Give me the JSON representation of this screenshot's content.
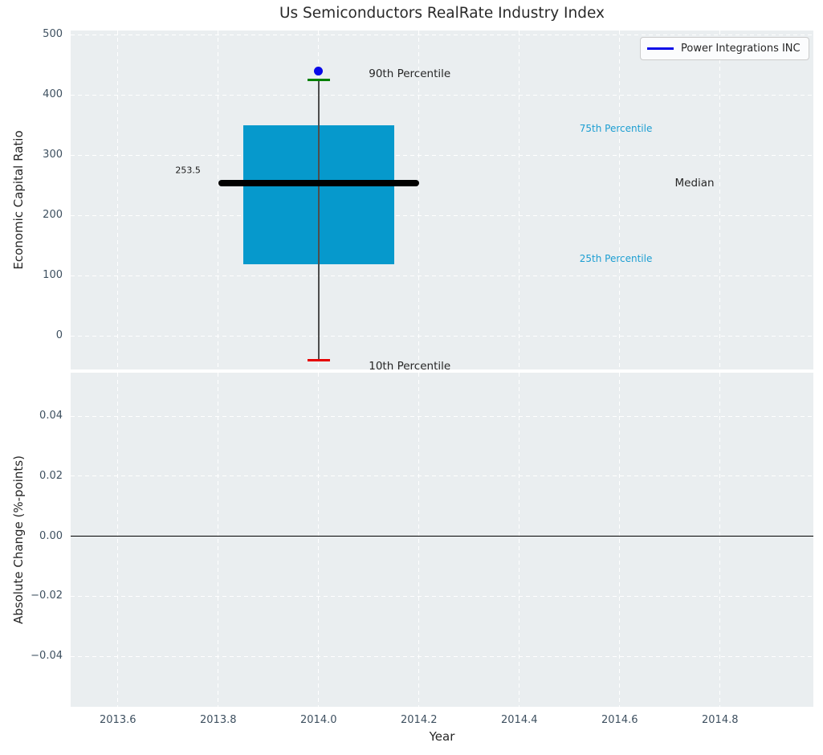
{
  "chart_data": {
    "type": "boxplot",
    "title": "Us Semiconductors RealRate Industry Index",
    "xlabel": "Year",
    "xlim": [
      2013.506,
      2014.986
    ],
    "xticks": [
      2013.6,
      2013.8,
      2014.0,
      2014.2,
      2014.4,
      2014.6,
      2014.8
    ],
    "xtick_labels": [
      "2013.6",
      "2013.8",
      "2014.0",
      "2014.2",
      "2014.4",
      "2014.6",
      "2014.8"
    ],
    "grid": "white dashed on light panel",
    "legend": {
      "label": "Power Integrations INC",
      "line_color": "#0808e8",
      "position": "upper right"
    },
    "panels": {
      "top": {
        "ylabel": "Economic Capital Ratio",
        "ylim": [
          -56,
          507
        ],
        "yticks": [
          0,
          100,
          200,
          300,
          400,
          500
        ],
        "ytick_labels": [
          "0",
          "100",
          "200",
          "300",
          "400",
          "500"
        ],
        "boxplot": {
          "x_center": 2014.0,
          "box_x_range": [
            2013.85,
            2014.15
          ],
          "median_x_range": [
            2013.8,
            2014.2
          ],
          "cap_x_range": [
            2013.978,
            2014.022
          ],
          "p90": 425,
          "p75": 349,
          "median": 253.5,
          "p25": 119,
          "p10": -41
        },
        "median_value_label": "253.5",
        "company_point": {
          "x": 2014.0,
          "value": 440,
          "name": "Power Integrations INC"
        },
        "annotations": [
          {
            "text": "90th Percentile",
            "x": 2014.1,
            "value": 435,
            "color": "#262626",
            "size": 13.5
          },
          {
            "text": "75th Percentile",
            "x": 2014.52,
            "value": 344,
            "color": "#1c9ed2",
            "size": 12
          },
          {
            "text": "Median",
            "x": 2014.71,
            "value": 253,
            "color": "#262626",
            "size": 13.5
          },
          {
            "text": "25th Percentile",
            "x": 2014.52,
            "value": 128,
            "color": "#1c9ed2",
            "size": 12
          },
          {
            "text": "10th Percentile",
            "x": 2014.1,
            "value": -50,
            "color": "#262626",
            "size": 13.5
          }
        ]
      },
      "bottom": {
        "ylabel": "Absolute Change (%-points)",
        "ylim": [
          -0.0568,
          0.0545
        ],
        "yticks": [
          -0.04,
          -0.02,
          0,
          0.02,
          0.04
        ],
        "ytick_labels": [
          "−0.04",
          "−0.02",
          "0.00",
          "0.02",
          "0.04"
        ],
        "zero_line_value": 0
      }
    },
    "colors": {
      "box_fill": "#0699cc",
      "median_line": "#000000",
      "whisker": "#4d4d4d",
      "cap_top": "#008000",
      "cap_bottom": "#e50000",
      "company_point": "#0808e8",
      "panel_bg": "#eaeef0",
      "grid": "#ffffff",
      "zero_line": "#000000",
      "tick_text": "#3e5060",
      "text": "#262626"
    }
  }
}
